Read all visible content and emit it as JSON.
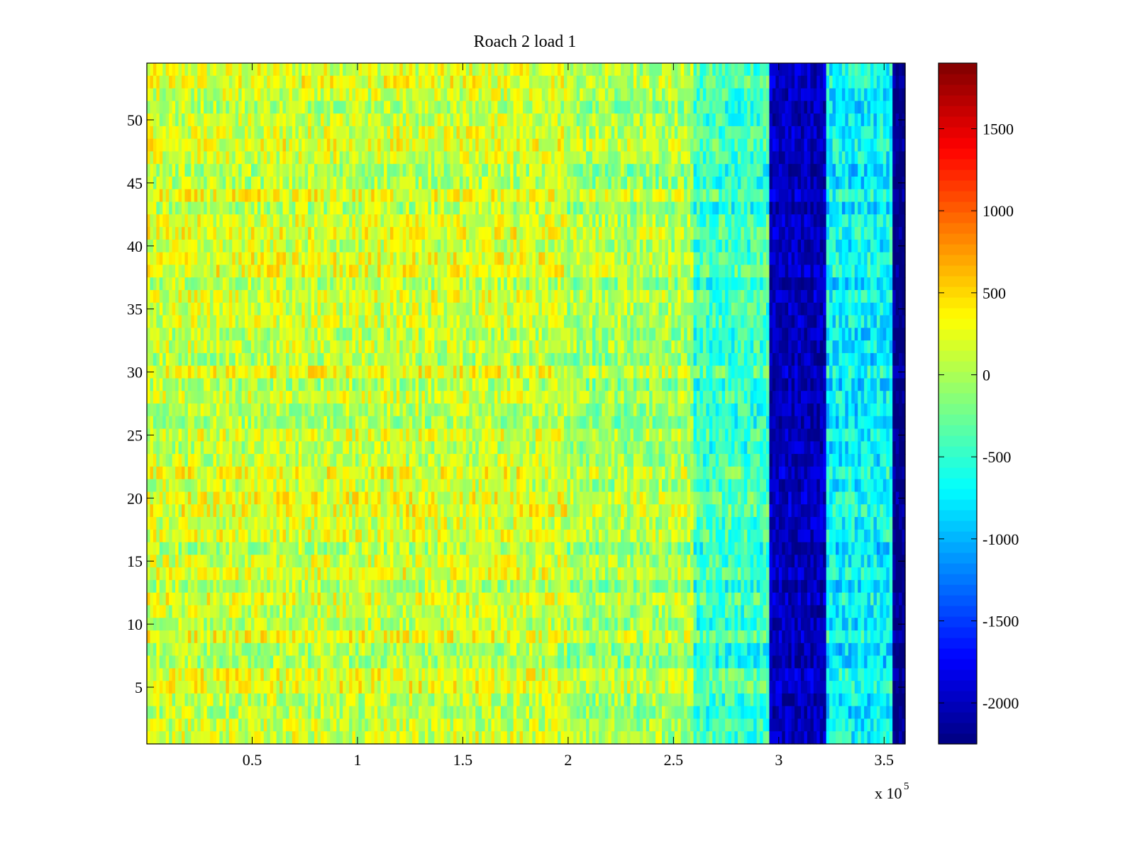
{
  "chart_data": {
    "type": "heatmap",
    "title": "Roach 2 load 1",
    "xlabel": "",
    "ylabel": "",
    "x_multiplier_label": "x 10",
    "x_multiplier_exponent": "5",
    "xlim": [
      0,
      3.6
    ],
    "ylim": [
      0.5,
      54.5
    ],
    "xticks": [
      0.5,
      1,
      1.5,
      2,
      2.5,
      3,
      3.5
    ],
    "xtick_labels": [
      "0.5",
      "1",
      "1.5",
      "2",
      "2.5",
      "3",
      "3.5"
    ],
    "yticks": [
      5,
      10,
      15,
      20,
      25,
      30,
      35,
      40,
      45,
      50
    ],
    "ytick_labels": [
      "5",
      "10",
      "15",
      "20",
      "25",
      "30",
      "35",
      "40",
      "45",
      "50"
    ],
    "colormap": "jet",
    "clim": [
      -2250,
      1900
    ],
    "colorbar_ticks": [
      1500,
      1000,
      500,
      0,
      -500,
      -1000,
      -1500,
      -2000
    ],
    "colorbar_tick_labels": [
      "1500",
      "1000",
      "500",
      "0",
      "-500",
      "-1000",
      "-1500",
      "-2000"
    ],
    "rows": 54,
    "regions": [
      {
        "x_start": 0.0,
        "x_end": 2.0,
        "mean_value": 150,
        "description_level": "yellow-green"
      },
      {
        "x_start": 2.0,
        "x_end": 2.6,
        "mean_value": 0,
        "description_level": "green-yellow"
      },
      {
        "x_start": 2.6,
        "x_end": 2.96,
        "mean_value": -450,
        "description_level": "cyan-green"
      },
      {
        "x_start": 2.96,
        "x_end": 3.23,
        "mean_value": -2000,
        "description_level": "dark blue"
      },
      {
        "x_start": 3.23,
        "x_end": 3.54,
        "mean_value": -700,
        "description_level": "cyan"
      },
      {
        "x_start": 3.54,
        "x_end": 3.6,
        "mean_value": -2250,
        "description_level": "dark blue"
      }
    ]
  }
}
